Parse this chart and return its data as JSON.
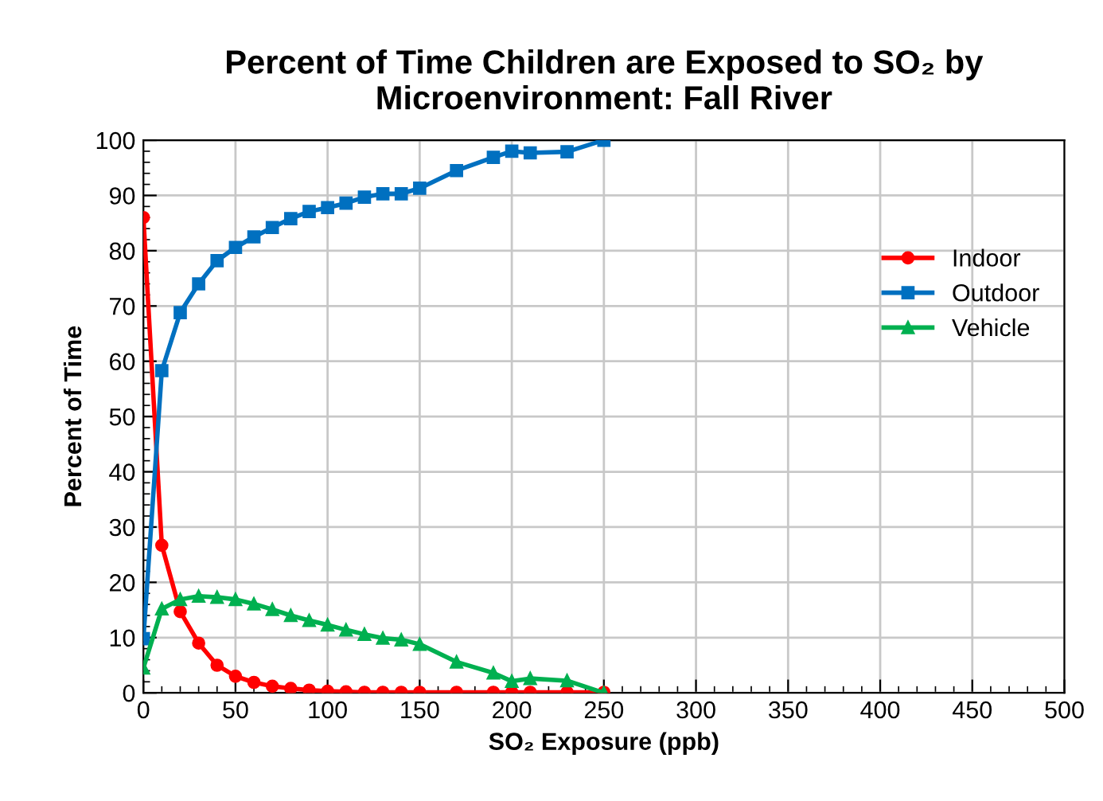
{
  "chart_data": {
    "type": "line",
    "title": "Percent of Time Children are Exposed to SO₂ by\nMicroenvironment: Fall River",
    "xlabel": "SO₂ Exposure (ppb)",
    "ylabel": "Percent of Time",
    "x": [
      0,
      10,
      20,
      30,
      40,
      50,
      60,
      70,
      80,
      90,
      100,
      110,
      120,
      130,
      140,
      150,
      170,
      190,
      200,
      210,
      230,
      250
    ],
    "series": [
      {
        "name": "Indoor",
        "color": "#ff0000",
        "marker": "circle",
        "values": [
          86,
          26.7,
          14.7,
          9,
          5,
          3,
          1.9,
          1.2,
          0.8,
          0.5,
          0.3,
          0.2,
          0.1,
          0.1,
          0.1,
          0.1,
          0.1,
          0.1,
          0.1,
          0.1,
          0.1,
          0.1
        ]
      },
      {
        "name": "Outdoor",
        "color": "#0070c0",
        "marker": "square",
        "values": [
          9.8,
          58.3,
          68.8,
          74,
          78.2,
          80.6,
          82.5,
          84.2,
          85.8,
          87.1,
          87.8,
          88.6,
          89.7,
          90.3,
          90.3,
          91.3,
          94.5,
          96.9,
          98,
          97.7,
          97.9,
          100
        ]
      },
      {
        "name": "Vehicle",
        "color": "#00b050",
        "marker": "triangle",
        "values": [
          4.5,
          15.2,
          16.9,
          17.5,
          17.3,
          16.9,
          16.1,
          15.1,
          14,
          13.1,
          12.3,
          11.4,
          10.6,
          9.9,
          9.6,
          8.8,
          5.6,
          3.6,
          2.1,
          2.6,
          2.2,
          0
        ]
      }
    ],
    "xlim": [
      0,
      500
    ],
    "xticks": [
      0,
      50,
      100,
      150,
      200,
      250,
      300,
      350,
      400,
      450,
      500
    ],
    "ylim": [
      0,
      100
    ],
    "yticks": [
      0,
      10,
      20,
      30,
      40,
      50,
      60,
      70,
      80,
      90,
      100
    ],
    "grid": true,
    "legend": "right",
    "line_style": "solid"
  }
}
